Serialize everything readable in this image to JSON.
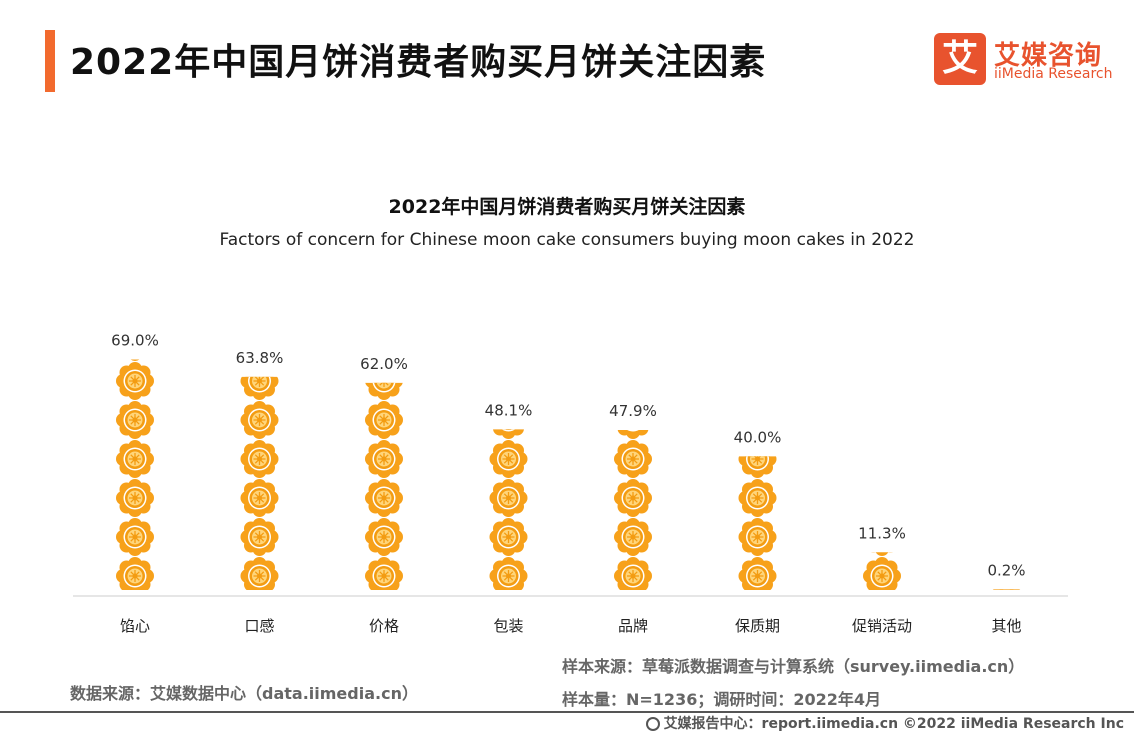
{
  "header": {
    "title": "2022年中国月饼消费者购买月饼关注因素"
  },
  "logo": {
    "mark": "艾",
    "name_cn": "艾媒咨询",
    "name_en": "iiMedia Research"
  },
  "colors": {
    "accent": "#f26a2e",
    "petal": "#f7a11a",
    "core": "#ffd57a",
    "baseline": "#cccccc"
  },
  "chart_data": {
    "type": "bar",
    "title": "2022年中国月饼消费者购买月饼关注因素",
    "subtitle": "Factors of concern for Chinese moon cake consumers buying moon cakes in 2022",
    "categories": [
      "馅心",
      "口感",
      "价格",
      "包装",
      "品牌",
      "保质期",
      "促销活动",
      "其他"
    ],
    "values": [
      69.0,
      63.8,
      62.0,
      48.1,
      47.9,
      40.0,
      11.3,
      0.2
    ],
    "value_labels": [
      "69.0%",
      "63.8%",
      "62.0%",
      "48.1%",
      "47.9%",
      "40.0%",
      "11.3%",
      "0.2%"
    ],
    "unit": "%",
    "ylim": [
      0,
      70
    ],
    "xlabel": "",
    "ylabel": ""
  },
  "sources": {
    "data_source": "数据来源：艾媒数据中心（data.iimedia.cn）",
    "sample_source": "样本来源：草莓派数据调查与计算系统（survey.iimedia.cn）",
    "sample_info": "样本量：N=1236；调研时间：2022年4月"
  },
  "footer": {
    "text": "艾媒报告中心：report.iimedia.cn   ©2022  iiMedia Research  Inc"
  }
}
